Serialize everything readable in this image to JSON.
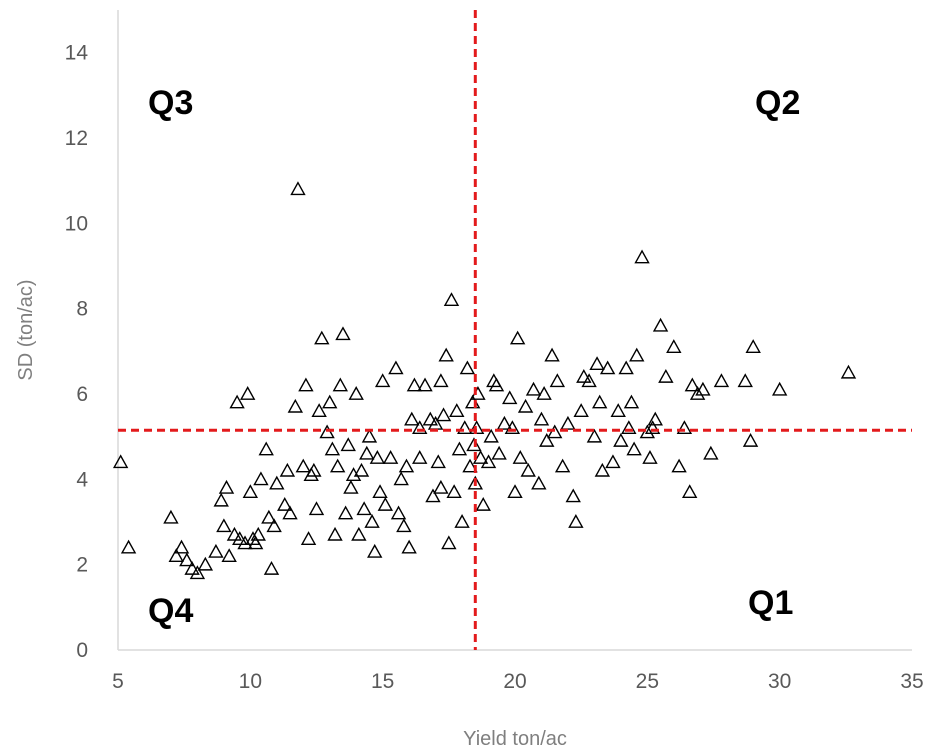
{
  "chart_data": {
    "type": "scatter",
    "xlabel": "Yield ton/ac",
    "ylabel": "SD (ton/ac)",
    "xlim": [
      5,
      35
    ],
    "ylim": [
      0,
      15
    ],
    "x_ticks": [
      5,
      10,
      15,
      20,
      25,
      30,
      35
    ],
    "y_ticks": [
      0,
      2,
      4,
      6,
      8,
      10,
      12,
      14
    ],
    "grid": false,
    "marker": "open-triangle",
    "thresholds": {
      "x": 18.5,
      "y": 5.15,
      "color": "#e31a1c",
      "style": "dashed"
    },
    "quadrant_labels": {
      "Q1": "Q1",
      "Q2": "Q2",
      "Q3": "Q3",
      "Q4": "Q4"
    },
    "points": [
      [
        5.1,
        4.4
      ],
      [
        5.4,
        2.4
      ],
      [
        7.0,
        3.1
      ],
      [
        7.2,
        2.2
      ],
      [
        7.4,
        2.4
      ],
      [
        7.6,
        2.1
      ],
      [
        7.8,
        1.9
      ],
      [
        8.0,
        1.8
      ],
      [
        8.3,
        2.0
      ],
      [
        8.7,
        2.3
      ],
      [
        8.9,
        3.5
      ],
      [
        9.0,
        2.9
      ],
      [
        9.1,
        3.8
      ],
      [
        9.2,
        2.2
      ],
      [
        9.4,
        2.7
      ],
      [
        9.5,
        5.8
      ],
      [
        9.8,
        2.5
      ],
      [
        9.9,
        6.0
      ],
      [
        10.0,
        3.7
      ],
      [
        10.1,
        2.6
      ],
      [
        10.3,
        2.7
      ],
      [
        10.4,
        4.0
      ],
      [
        10.6,
        4.7
      ],
      [
        10.7,
        3.1
      ],
      [
        10.8,
        1.9
      ],
      [
        10.9,
        2.9
      ],
      [
        11.0,
        3.9
      ],
      [
        11.3,
        3.4
      ],
      [
        11.5,
        3.2
      ],
      [
        11.7,
        5.7
      ],
      [
        11.8,
        10.8
      ],
      [
        12.0,
        4.3
      ],
      [
        12.1,
        6.2
      ],
      [
        12.2,
        2.6
      ],
      [
        12.3,
        4.1
      ],
      [
        12.5,
        3.3
      ],
      [
        12.6,
        5.6
      ],
      [
        12.7,
        7.3
      ],
      [
        12.9,
        5.1
      ],
      [
        13.0,
        5.8
      ],
      [
        13.1,
        4.7
      ],
      [
        13.2,
        2.7
      ],
      [
        13.3,
        4.3
      ],
      [
        13.4,
        6.2
      ],
      [
        13.5,
        7.4
      ],
      [
        13.6,
        3.2
      ],
      [
        13.8,
        3.8
      ],
      [
        13.9,
        4.1
      ],
      [
        14.0,
        6.0
      ],
      [
        14.1,
        2.7
      ],
      [
        14.2,
        4.2
      ],
      [
        14.3,
        3.3
      ],
      [
        14.5,
        5.0
      ],
      [
        14.6,
        3.0
      ],
      [
        14.7,
        2.3
      ],
      [
        14.8,
        4.5
      ],
      [
        14.9,
        3.7
      ],
      [
        15.0,
        6.3
      ],
      [
        15.1,
        3.4
      ],
      [
        15.3,
        4.5
      ],
      [
        15.5,
        6.6
      ],
      [
        15.6,
        3.2
      ],
      [
        15.8,
        2.9
      ],
      [
        15.9,
        4.3
      ],
      [
        16.0,
        2.4
      ],
      [
        16.1,
        5.4
      ],
      [
        16.2,
        6.2
      ],
      [
        16.4,
        4.5
      ],
      [
        16.6,
        6.2
      ],
      [
        16.8,
        5.4
      ],
      [
        17.0,
        5.3
      ],
      [
        17.1,
        4.4
      ],
      [
        17.2,
        3.8
      ],
      [
        17.3,
        5.5
      ],
      [
        17.4,
        6.9
      ],
      [
        17.5,
        2.5
      ],
      [
        17.6,
        8.2
      ],
      [
        17.8,
        5.6
      ],
      [
        17.9,
        4.7
      ],
      [
        18.0,
        3.0
      ],
      [
        18.1,
        5.2
      ],
      [
        18.2,
        6.6
      ],
      [
        18.3,
        4.3
      ],
      [
        18.4,
        5.8
      ],
      [
        18.45,
        4.8
      ],
      [
        18.5,
        3.9
      ],
      [
        18.55,
        5.2
      ],
      [
        18.6,
        6.0
      ],
      [
        18.8,
        3.4
      ],
      [
        19.0,
        4.4
      ],
      [
        19.1,
        5.0
      ],
      [
        19.2,
        6.3
      ],
      [
        19.4,
        4.6
      ],
      [
        19.6,
        5.3
      ],
      [
        19.8,
        5.9
      ],
      [
        20.0,
        3.7
      ],
      [
        20.1,
        7.3
      ],
      [
        20.2,
        4.5
      ],
      [
        20.4,
        5.7
      ],
      [
        20.5,
        4.2
      ],
      [
        20.7,
        6.1
      ],
      [
        20.9,
        3.9
      ],
      [
        21.0,
        5.4
      ],
      [
        21.2,
        4.9
      ],
      [
        21.4,
        6.9
      ],
      [
        21.5,
        5.1
      ],
      [
        21.6,
        6.3
      ],
      [
        21.8,
        4.3
      ],
      [
        22.0,
        5.3
      ],
      [
        22.2,
        3.6
      ],
      [
        22.3,
        3.0
      ],
      [
        22.5,
        5.6
      ],
      [
        22.8,
        6.3
      ],
      [
        23.0,
        5.0
      ],
      [
        23.2,
        5.8
      ],
      [
        23.3,
        4.2
      ],
      [
        23.5,
        6.6
      ],
      [
        23.7,
        4.4
      ],
      [
        23.9,
        5.6
      ],
      [
        24.0,
        4.9
      ],
      [
        24.2,
        6.6
      ],
      [
        24.4,
        5.8
      ],
      [
        24.5,
        4.7
      ],
      [
        24.6,
        6.9
      ],
      [
        24.8,
        9.2
      ],
      [
        25.0,
        5.1
      ],
      [
        25.1,
        4.5
      ],
      [
        25.3,
        5.4
      ],
      [
        25.5,
        7.6
      ],
      [
        25.7,
        6.4
      ],
      [
        26.0,
        7.1
      ],
      [
        26.2,
        4.3
      ],
      [
        26.4,
        5.2
      ],
      [
        26.6,
        3.7
      ],
      [
        26.9,
        6.0
      ],
      [
        27.1,
        6.1
      ],
      [
        27.4,
        4.6
      ],
      [
        27.8,
        6.3
      ],
      [
        28.7,
        6.3
      ],
      [
        28.9,
        4.9
      ],
      [
        29.0,
        7.1
      ],
      [
        30.0,
        6.1
      ],
      [
        32.6,
        6.5
      ],
      [
        16.4,
        5.2
      ],
      [
        17.2,
        6.3
      ],
      [
        19.3,
        6.2
      ],
      [
        21.1,
        6.0
      ],
      [
        22.6,
        6.4
      ],
      [
        23.1,
        6.7
      ],
      [
        24.3,
        5.2
      ],
      [
        25.2,
        5.2
      ],
      [
        26.7,
        6.2
      ],
      [
        19.9,
        5.2
      ],
      [
        18.7,
        4.5
      ],
      [
        17.7,
        3.7
      ],
      [
        16.9,
        3.6
      ],
      [
        15.7,
        4.0
      ],
      [
        14.4,
        4.6
      ],
      [
        13.7,
        4.8
      ],
      [
        12.4,
        4.2
      ],
      [
        11.4,
        4.2
      ],
      [
        10.2,
        2.5
      ],
      [
        9.6,
        2.6
      ]
    ]
  }
}
